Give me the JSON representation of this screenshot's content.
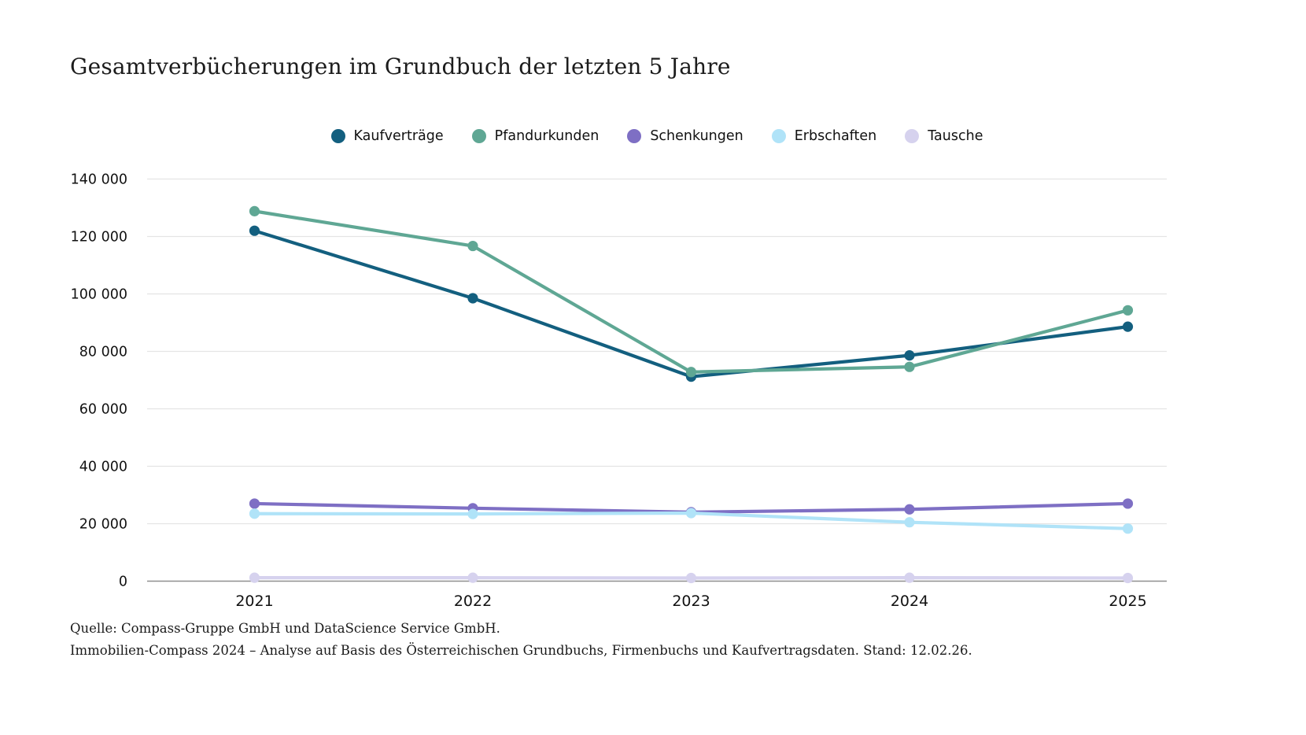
{
  "title": "Gesamtverbücherungen im Grundbuch der letzten 5 Jahre",
  "footer": {
    "line1": "Quelle: Compass-Gruppe GmbH und DataScience Service GmbH.",
    "line2": "Immobilien-Compass 2024 – Analyse auf Basis des Österreichischen Grundbuchs, Firmenbuchs und Kaufvertragsdaten. Stand: 12.02.26."
  },
  "colors": {
    "gridline": "#e4e4e4",
    "zero_axis": "#8f8f8f",
    "tick_text": "#111111"
  },
  "chart_data": {
    "type": "line",
    "title": "Gesamtverbücherungen im Grundbuch der letzten 5 Jahre",
    "x": [
      "2021",
      "2022",
      "2023",
      "2024",
      "2025"
    ],
    "series": [
      {
        "name": "Kaufverträge",
        "color": "#135f7f",
        "values": [
          122000,
          98500,
          71200,
          78600,
          88600
        ]
      },
      {
        "name": "Pfandurkunden",
        "color": "#5fa794",
        "values": [
          128800,
          116700,
          72800,
          74600,
          94300
        ]
      },
      {
        "name": "Schenkungen",
        "color": "#7e6fc4",
        "values": [
          27000,
          25400,
          24000,
          25000,
          27000
        ]
      },
      {
        "name": "Erbschaften",
        "color": "#b0e3f8",
        "values": [
          23500,
          23400,
          23700,
          20500,
          18300
        ]
      },
      {
        "name": "Tausche",
        "color": "#d6d2ee",
        "values": [
          1200,
          1200,
          1100,
          1200,
          1100
        ]
      }
    ],
    "ylim": [
      0,
      140000
    ],
    "ytick_step": 20000,
    "ytick_labels": [
      "0",
      "20 000",
      "40 000",
      "60 000",
      "80 000",
      "100 000",
      "120 000",
      "140 000"
    ],
    "grid": true,
    "legend_position": "top-center",
    "xlabel": "",
    "ylabel": ""
  }
}
